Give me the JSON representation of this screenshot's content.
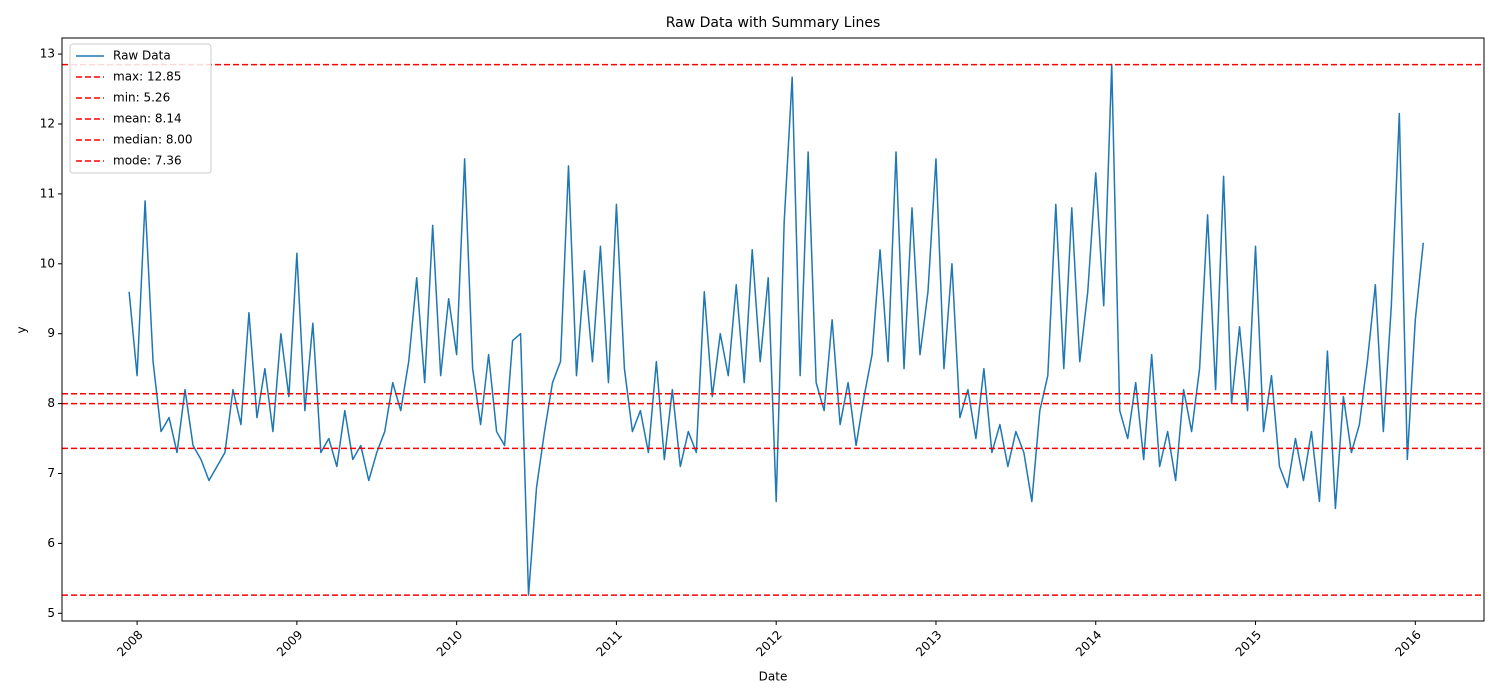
{
  "chart_data": {
    "type": "line",
    "title": "Raw Data with Summary Lines",
    "xlabel": "Date",
    "ylabel": "y",
    "xlim": [
      2007.53,
      2016.43
    ],
    "ylim": [
      4.89,
      13.23
    ],
    "xticks": [
      2008,
      2009,
      2010,
      2011,
      2012,
      2013,
      2014,
      2015,
      2016
    ],
    "yticks": [
      5,
      6,
      7,
      8,
      9,
      10,
      11,
      12,
      13
    ],
    "legend": "upper left",
    "x": [
      2007.95,
      2008,
      2008.05,
      2008.1,
      2008.15,
      2008.2,
      2008.25,
      2008.3,
      2008.35,
      2008.4,
      2008.45,
      2008.5,
      2008.55,
      2008.6,
      2008.65,
      2008.7,
      2008.75,
      2008.8,
      2008.85,
      2008.9,
      2008.95,
      2009,
      2009.05,
      2009.1,
      2009.15,
      2009.2,
      2009.25,
      2009.3,
      2009.35,
      2009.4,
      2009.45,
      2009.5,
      2009.55,
      2009.6,
      2009.65,
      2009.7,
      2009.75,
      2009.8,
      2009.85,
      2009.9,
      2009.95,
      2010,
      2010.05,
      2010.1,
      2010.15,
      2010.2,
      2010.25,
      2010.3,
      2010.35,
      2010.4,
      2010.45,
      2010.5,
      2010.55,
      2010.6,
      2010.65,
      2010.7,
      2010.75,
      2010.8,
      2010.85,
      2010.9,
      2010.95,
      2011,
      2011.05,
      2011.1,
      2011.15,
      2011.2,
      2011.25,
      2011.3,
      2011.35,
      2011.4,
      2011.45,
      2011.5,
      2011.55,
      2011.6,
      2011.65,
      2011.7,
      2011.75,
      2011.8,
      2011.85,
      2011.9,
      2011.95,
      2012,
      2012.05,
      2012.1,
      2012.15,
      2012.2,
      2012.25,
      2012.3,
      2012.35,
      2012.4,
      2012.45,
      2012.5,
      2012.55,
      2012.6,
      2012.65,
      2012.7,
      2012.75,
      2012.8,
      2012.85,
      2012.9,
      2012.95,
      2013,
      2013.05,
      2013.1,
      2013.15,
      2013.2,
      2013.25,
      2013.3,
      2013.35,
      2013.4,
      2013.45,
      2013.5,
      2013.55,
      2013.6,
      2013.65,
      2013.7,
      2013.75,
      2013.8,
      2013.85,
      2013.9,
      2013.95,
      2014,
      2014.05,
      2014.1,
      2014.15,
      2014.2,
      2014.25,
      2014.3,
      2014.35,
      2014.4,
      2014.45,
      2014.5,
      2014.55,
      2014.6,
      2014.65,
      2014.7,
      2014.75,
      2014.8,
      2014.85,
      2014.9,
      2014.95,
      2015,
      2015.05,
      2015.1,
      2015.15,
      2015.2,
      2015.25,
      2015.3,
      2015.35,
      2015.4,
      2015.45,
      2015.5,
      2015.55,
      2015.6,
      2015.65,
      2015.7,
      2015.75,
      2015.8,
      2015.85,
      2015.9,
      2015.95,
      2016,
      2016.05
    ],
    "series": [
      {
        "name": "Raw Data",
        "color": "#1f77b4",
        "values": [
          9.6,
          8.4,
          10.9,
          8.6,
          7.6,
          7.8,
          7.3,
          8.2,
          7.4,
          7.2,
          6.9,
          7.1,
          7.3,
          8.2,
          7.7,
          9.3,
          7.8,
          8.5,
          7.6,
          9.0,
          8.1,
          10.15,
          7.9,
          9.15,
          7.3,
          7.5,
          7.1,
          7.9,
          7.2,
          7.4,
          6.9,
          7.3,
          7.6,
          8.3,
          7.9,
          8.6,
          9.8,
          8.3,
          10.55,
          8.4,
          9.5,
          8.7,
          11.5,
          8.5,
          7.7,
          8.7,
          7.6,
          7.4,
          8.9,
          9.0,
          5.26,
          6.8,
          7.6,
          8.3,
          8.6,
          11.4,
          8.4,
          9.9,
          8.6,
          10.25,
          8.3,
          10.85,
          8.5,
          7.6,
          7.9,
          7.3,
          8.6,
          7.2,
          8.2,
          7.1,
          7.6,
          7.3,
          9.6,
          8.1,
          9.0,
          8.4,
          9.7,
          8.3,
          10.2,
          8.6,
          9.8,
          6.6,
          10.6,
          12.67,
          8.4,
          11.6,
          8.3,
          7.9,
          9.2,
          7.7,
          8.3,
          7.4,
          8.1,
          8.7,
          10.2,
          8.6,
          11.6,
          8.5,
          10.8,
          8.7,
          9.6,
          11.5,
          8.5,
          10.0,
          7.8,
          8.2,
          7.5,
          8.5,
          7.3,
          7.7,
          7.1,
          7.6,
          7.3,
          6.6,
          7.9,
          8.4,
          10.85,
          8.5,
          10.8,
          8.6,
          9.6,
          11.3,
          9.4,
          12.85,
          7.9,
          7.5,
          8.3,
          7.2,
          8.7,
          7.1,
          7.6,
          6.9,
          8.2,
          7.6,
          8.5,
          10.7,
          8.2,
          11.25,
          8.0,
          9.1,
          7.9,
          10.25,
          7.6,
          8.4,
          7.1,
          6.8,
          7.5,
          6.9,
          7.6,
          6.6,
          8.75,
          6.5,
          8.1,
          7.3,
          7.7,
          8.6,
          9.7,
          7.6,
          9.4,
          12.15,
          7.2,
          9.2,
          10.3
        ]
      }
    ],
    "lines": [
      {
        "label": "max: 12.85",
        "value": 12.85,
        "color": "#ff0000"
      },
      {
        "label": "min: 5.26",
        "value": 5.26,
        "color": "#ff0000"
      },
      {
        "label": "mean: 8.14",
        "value": 8.14,
        "color": "#ff0000"
      },
      {
        "label": "median: 8.00",
        "value": 8.0,
        "color": "#ff0000"
      },
      {
        "label": "mode: 7.36",
        "value": 7.36,
        "color": "#ff0000"
      }
    ]
  }
}
